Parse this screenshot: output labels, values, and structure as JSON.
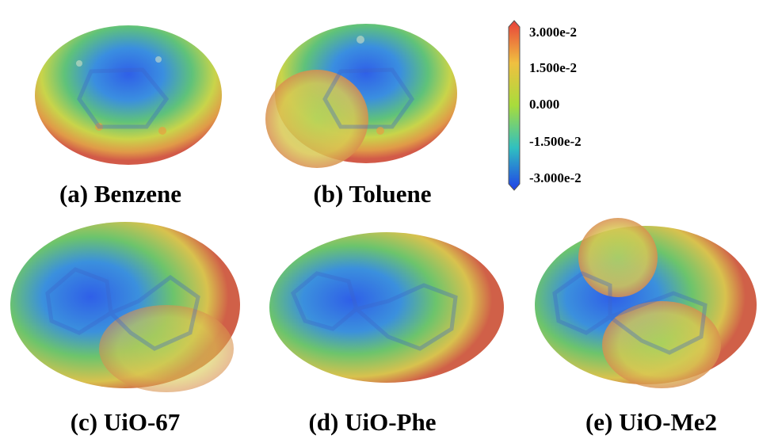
{
  "panels": [
    {
      "label": "(a) Benzene"
    },
    {
      "label": "(b) Toluene"
    },
    {
      "label": "(c) UiO-67"
    },
    {
      "label": "(d) UiO-Phe"
    },
    {
      "label": "(e) UiO-Me2"
    }
  ],
  "colorbar": {
    "labels": [
      "3.000e-2",
      "1.500e-2",
      "0.000",
      "-1.500e-2",
      "-3.000e-2"
    ]
  }
}
